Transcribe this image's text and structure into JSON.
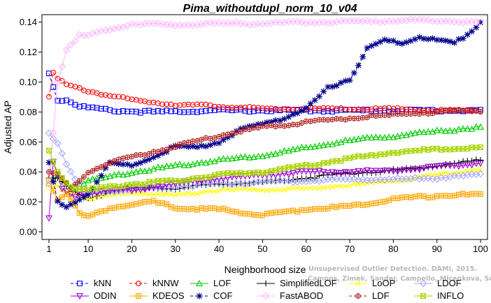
{
  "chart_data": {
    "type": "line",
    "title": "Pima_withoutdupl_norm_10_v04",
    "xlabel": "Neighborhood size",
    "ylabel": "Adjusted AP",
    "xlim": [
      1,
      100
    ],
    "ylim": [
      0,
      0.145
    ],
    "x_ticks": [
      1,
      10,
      20,
      30,
      40,
      50,
      60,
      70,
      80,
      90,
      100
    ],
    "y_ticks": [
      0,
      0.02,
      0.04,
      0.06,
      0.08,
      0.1,
      0.12,
      0.14
    ],
    "x_tick_labels": [
      "1",
      "10",
      "20",
      "30",
      "40",
      "50",
      "60",
      "70",
      "80",
      "90",
      "100"
    ],
    "y_tick_labels": [
      "0.00",
      "0.02",
      "0.04",
      "0.06",
      "0.08",
      "0.10",
      "0.12",
      "0.14"
    ],
    "grid": false,
    "legend_position": "bottom",
    "watermark": [
      "Unsupervised Outlier Detection. DAMI, 2015.",
      "Campos, Zimek, Sander, Campello, Micenkova, Schubert, Assent, Houle"
    ],
    "series": [
      {
        "name": "kNN",
        "color": "#0000ff",
        "marker": "square",
        "dashed": true,
        "keypoints": [
          [
            1,
            0.106
          ],
          [
            3,
            0.088
          ],
          [
            5,
            0.088
          ],
          [
            8,
            0.084
          ],
          [
            10,
            0.083
          ],
          [
            15,
            0.081
          ],
          [
            25,
            0.08
          ],
          [
            40,
            0.081
          ],
          [
            60,
            0.081
          ],
          [
            80,
            0.081
          ],
          [
            100,
            0.081
          ]
        ]
      },
      {
        "name": "kNNW",
        "color": "#ff0000",
        "marker": "circle",
        "dashed": true,
        "keypoints": [
          [
            1,
            0.091
          ],
          [
            2,
            0.106
          ],
          [
            3,
            0.102
          ],
          [
            5,
            0.098
          ],
          [
            10,
            0.094
          ],
          [
            15,
            0.091
          ],
          [
            20,
            0.088
          ],
          [
            30,
            0.085
          ],
          [
            40,
            0.084
          ],
          [
            50,
            0.082
          ],
          [
            60,
            0.082
          ],
          [
            70,
            0.082
          ],
          [
            80,
            0.082
          ],
          [
            90,
            0.081
          ],
          [
            100,
            0.081
          ]
        ]
      },
      {
        "name": "LOF",
        "color": "#00cc00",
        "marker": "triangle",
        "dashed": false,
        "keypoints": [
          [
            1,
            0.032
          ],
          [
            3,
            0.038
          ],
          [
            6,
            0.03
          ],
          [
            10,
            0.034
          ],
          [
            20,
            0.04
          ],
          [
            30,
            0.044
          ],
          [
            40,
            0.048
          ],
          [
            50,
            0.051
          ],
          [
            60,
            0.056
          ],
          [
            70,
            0.061
          ],
          [
            80,
            0.064
          ],
          [
            90,
            0.067
          ],
          [
            100,
            0.07
          ]
        ]
      },
      {
        "name": "SimplifiedLOF",
        "color": "#000000",
        "marker": "plus",
        "dashed": false,
        "keypoints": [
          [
            1,
            0.036
          ],
          [
            3,
            0.036
          ],
          [
            6,
            0.028
          ],
          [
            10,
            0.022
          ],
          [
            15,
            0.027
          ],
          [
            20,
            0.029
          ],
          [
            30,
            0.029
          ],
          [
            40,
            0.032
          ],
          [
            50,
            0.033
          ],
          [
            60,
            0.036
          ],
          [
            70,
            0.039
          ],
          [
            80,
            0.041
          ],
          [
            90,
            0.044
          ],
          [
            100,
            0.048
          ]
        ]
      },
      {
        "name": "LoOP",
        "color": "#ffff00",
        "marker": "x",
        "dashed": false,
        "keypoints": [
          [
            1,
            0.03
          ],
          [
            3,
            0.03
          ],
          [
            6,
            0.026
          ],
          [
            10,
            0.022
          ],
          [
            20,
            0.026
          ],
          [
            30,
            0.024
          ],
          [
            40,
            0.028
          ],
          [
            50,
            0.028
          ],
          [
            60,
            0.029
          ],
          [
            70,
            0.031
          ],
          [
            80,
            0.034
          ],
          [
            90,
            0.038
          ],
          [
            100,
            0.042
          ]
        ]
      },
      {
        "name": "LDOF",
        "color": "#a6a6ff",
        "marker": "diamond",
        "dashed": false,
        "keypoints": [
          [
            1,
            0.066
          ],
          [
            3,
            0.06
          ],
          [
            5,
            0.045
          ],
          [
            8,
            0.03
          ],
          [
            10,
            0.026
          ],
          [
            20,
            0.028
          ],
          [
            30,
            0.03
          ],
          [
            40,
            0.032
          ],
          [
            50,
            0.033
          ],
          [
            60,
            0.034
          ],
          [
            70,
            0.035
          ],
          [
            80,
            0.035
          ],
          [
            90,
            0.036
          ],
          [
            100,
            0.038
          ]
        ]
      },
      {
        "name": "ODIN",
        "color": "#9900cc",
        "marker": "triangle-down",
        "dashed": false,
        "keypoints": [
          [
            1,
            0.009
          ],
          [
            2,
            0.046
          ],
          [
            4,
            0.028
          ],
          [
            7,
            0.024
          ],
          [
            10,
            0.026
          ],
          [
            20,
            0.028
          ],
          [
            30,
            0.032
          ],
          [
            40,
            0.036
          ],
          [
            50,
            0.038
          ],
          [
            60,
            0.04
          ],
          [
            70,
            0.04
          ],
          [
            80,
            0.041
          ],
          [
            90,
            0.043
          ],
          [
            100,
            0.046
          ]
        ]
      },
      {
        "name": "KDEOS",
        "color": "#ffa500",
        "marker": "boxplus",
        "dashed": false,
        "keypoints": [
          [
            1,
            0.034
          ],
          [
            3,
            0.022
          ],
          [
            5,
            0.026
          ],
          [
            8,
            0.012
          ],
          [
            10,
            0.01
          ],
          [
            15,
            0.016
          ],
          [
            20,
            0.018
          ],
          [
            25,
            0.02
          ],
          [
            30,
            0.016
          ],
          [
            40,
            0.015
          ],
          [
            50,
            0.011
          ],
          [
            60,
            0.015
          ],
          [
            70,
            0.017
          ],
          [
            80,
            0.022
          ],
          [
            90,
            0.024
          ],
          [
            100,
            0.025
          ]
        ]
      },
      {
        "name": "COF",
        "color": "#00008b",
        "marker": "asterisk",
        "dashed": true,
        "keypoints": [
          [
            1,
            0.046
          ],
          [
            3,
            0.02
          ],
          [
            5,
            0.016
          ],
          [
            8,
            0.022
          ],
          [
            10,
            0.025
          ],
          [
            15,
            0.046
          ],
          [
            20,
            0.044
          ],
          [
            25,
            0.05
          ],
          [
            30,
            0.057
          ],
          [
            35,
            0.056
          ],
          [
            40,
            0.06
          ],
          [
            45,
            0.068
          ],
          [
            50,
            0.072
          ],
          [
            55,
            0.076
          ],
          [
            60,
            0.082
          ],
          [
            65,
            0.096
          ],
          [
            70,
            0.102
          ],
          [
            74,
            0.122
          ],
          [
            78,
            0.128
          ],
          [
            82,
            0.126
          ],
          [
            86,
            0.13
          ],
          [
            90,
            0.128
          ],
          [
            94,
            0.126
          ],
          [
            98,
            0.134
          ],
          [
            100,
            0.14
          ]
        ]
      },
      {
        "name": "FastABOD",
        "color": "#ffb3ff",
        "marker": "diamond",
        "dashed": false,
        "keypoints": [
          [
            1,
            0.032
          ],
          [
            3,
            0.1
          ],
          [
            5,
            0.122
          ],
          [
            8,
            0.131
          ],
          [
            10,
            0.131
          ],
          [
            15,
            0.135
          ],
          [
            20,
            0.139
          ],
          [
            30,
            0.138
          ],
          [
            40,
            0.139
          ],
          [
            50,
            0.139
          ],
          [
            60,
            0.14
          ],
          [
            70,
            0.14
          ],
          [
            80,
            0.141
          ],
          [
            90,
            0.141
          ],
          [
            100,
            0.14
          ]
        ]
      },
      {
        "name": "LDF",
        "color": "#b22222",
        "marker": "circleplus",
        "dashed": true,
        "keypoints": [
          [
            1,
            0.04
          ],
          [
            3,
            0.038
          ],
          [
            6,
            0.028
          ],
          [
            10,
            0.04
          ],
          [
            15,
            0.046
          ],
          [
            20,
            0.05
          ],
          [
            30,
            0.057
          ],
          [
            40,
            0.064
          ],
          [
            50,
            0.07
          ],
          [
            60,
            0.073
          ],
          [
            70,
            0.076
          ],
          [
            80,
            0.078
          ],
          [
            90,
            0.08
          ],
          [
            100,
            0.081
          ]
        ]
      },
      {
        "name": "INFLO",
        "color": "#a8d400",
        "marker": "boxx",
        "dashed": false,
        "keypoints": [
          [
            1,
            0.054
          ],
          [
            3,
            0.04
          ],
          [
            6,
            0.03
          ],
          [
            10,
            0.028
          ],
          [
            20,
            0.032
          ],
          [
            30,
            0.034
          ],
          [
            40,
            0.038
          ],
          [
            50,
            0.04
          ],
          [
            60,
            0.044
          ],
          [
            70,
            0.049
          ],
          [
            80,
            0.053
          ],
          [
            90,
            0.055
          ],
          [
            100,
            0.056
          ]
        ]
      }
    ]
  }
}
